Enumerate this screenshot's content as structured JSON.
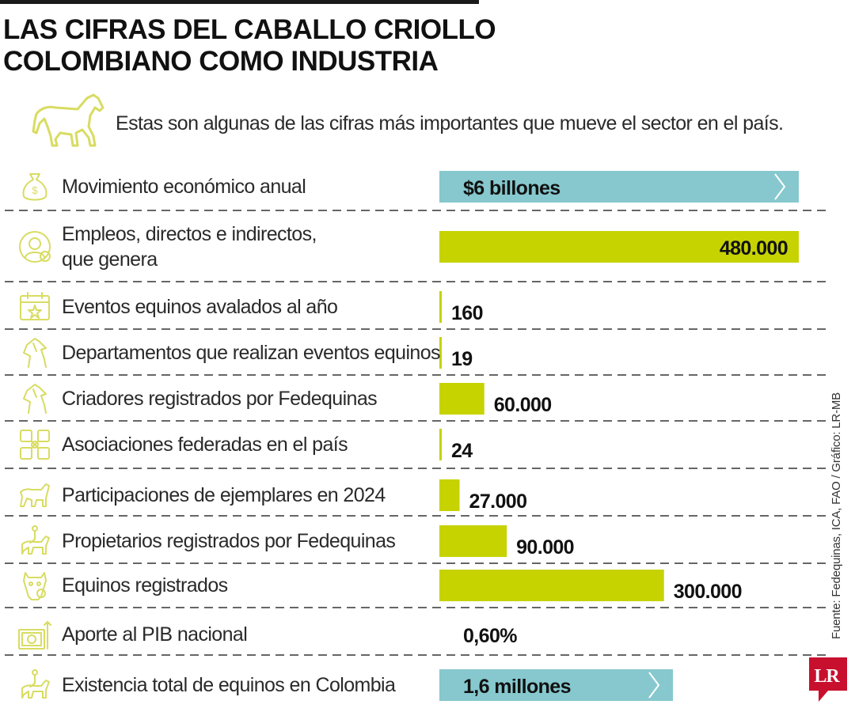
{
  "title": [
    "LAS CIFRAS DEL CABALLO CRIOLLO",
    "COLOMBIANO COMO INDUSTRIA"
  ],
  "intro": "Estas son algunas de las cifras más importantes que mueve el sector en el país.",
  "source": "Fuente: Fedequinas, ICA, FAO / Gráfico: LR-MB",
  "logo": "LR",
  "colors": {
    "bar": "#c6d300",
    "highlight": "#86c8ce",
    "icon": "#d8dc62",
    "divider": "#333333",
    "logo": "#c8102e"
  },
  "rows": [
    {
      "label": [
        "Movimiento económico anual"
      ],
      "value_text": "$6 billones",
      "icon": "money-bag-icon"
    },
    {
      "label": [
        "Empleos, directos e indirectos,",
        "que genera"
      ],
      "value_text": "480.000",
      "icon": "worker-icon"
    },
    {
      "label": [
        "Eventos equinos avalados al año"
      ],
      "value_text": "160",
      "icon": "calendar-star-icon"
    },
    {
      "label": [
        "Departamentos que realizan eventos equinos"
      ],
      "value_text": "19",
      "icon": "horse-head-icon"
    },
    {
      "label": [
        "Criadores registrados por Fedequinas"
      ],
      "value_text": "60.000",
      "icon": "horse-head-icon"
    },
    {
      "label": [
        "Asociaciones federadas en el país"
      ],
      "value_text": "24",
      "icon": "network-icon"
    },
    {
      "label": [
        "Participaciones de ejemplares en 2024"
      ],
      "value_text": "27.000",
      "icon": "horse-icon"
    },
    {
      "label": [
        "Propietarios registrados por Fedequinas"
      ],
      "value_text": "90.000",
      "icon": "rider-icon"
    },
    {
      "label": [
        "Equinos registrados"
      ],
      "value_text": "300.000",
      "icon": "horse-face-icon"
    },
    {
      "label": [
        "Aporte al PIB nacional"
      ],
      "value_text": "0,60%",
      "icon": "banknote-icon"
    },
    {
      "label": [
        "Existencia total de equinos en Colombia"
      ],
      "value_text": "1,6 millones",
      "icon": "rider-icon"
    }
  ],
  "chart_data": {
    "type": "bar",
    "orientation": "horizontal",
    "categories": [
      "Movimiento económico anual",
      "Empleos, directos e indirectos, que genera",
      "Eventos equinos avalados al año",
      "Departamentos que realizan eventos equinos",
      "Criadores registrados por Fedequinas",
      "Asociaciones federadas en el país",
      "Participaciones de ejemplares en 2024",
      "Propietarios registrados por Fedequinas",
      "Equinos registrados",
      "Aporte al PIB nacional",
      "Existencia total de equinos en Colombia"
    ],
    "values": [
      null,
      480000,
      160,
      19,
      60000,
      24,
      27000,
      90000,
      300000,
      0.6,
      1600000
    ],
    "data_labels": [
      "$6 billones",
      "480.000",
      "160",
      "19",
      "60.000",
      "24",
      "27.000",
      "90.000",
      "300.000",
      "0,60%",
      "1,6 millones"
    ],
    "highlighted_rows": [
      0,
      10
    ],
    "xlabel": "",
    "ylabel": "",
    "grid": false,
    "legend": "none"
  }
}
